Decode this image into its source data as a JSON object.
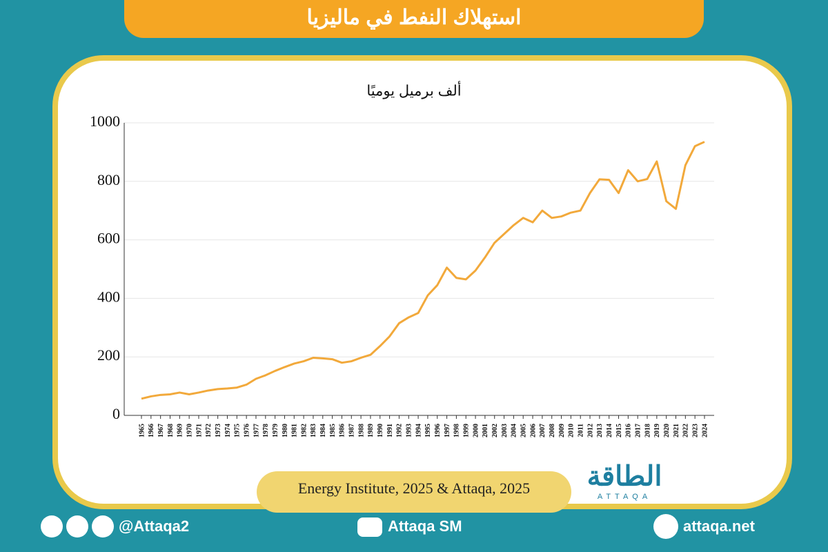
{
  "chart_data": {
    "type": "line",
    "title": "استهلاك النفط في ماليزيا",
    "subtitle": "ألف برميل يوميًا",
    "source": "Energy Institute, 2025 & Attaqa, 2025",
    "categories": [
      "1965",
      "1966",
      "1967",
      "1968",
      "1969",
      "1970",
      "1971",
      "1972",
      "1973",
      "1974",
      "1975",
      "1976",
      "1977",
      "1978",
      "1979",
      "1980",
      "1981",
      "1982",
      "1983",
      "1984",
      "1985",
      "1986",
      "1987",
      "1988",
      "1989",
      "1990",
      "1991",
      "1992",
      "1993",
      "1994",
      "1995",
      "1996",
      "1997",
      "1998",
      "1999",
      "2000",
      "2001",
      "2002",
      "2003",
      "2004",
      "2005",
      "2006",
      "2007",
      "2008",
      "2009",
      "2010",
      "2011",
      "2012",
      "2013",
      "2014",
      "2015",
      "2016",
      "2017",
      "2018",
      "2019",
      "2020",
      "2021",
      "2022",
      "2023",
      "2024"
    ],
    "series": [
      {
        "color": "#f2a93b",
        "values": [
          57,
          65,
          70,
          72,
          78,
          72,
          78,
          85,
          90,
          92,
          95,
          105,
          125,
          137,
          152,
          165,
          177,
          185,
          197,
          195,
          192,
          180,
          185,
          197,
          207,
          237,
          270,
          315,
          335,
          350,
          410,
          445,
          505,
          470,
          465,
          495,
          540,
          590,
          620,
          650,
          675,
          660,
          700,
          675,
          680,
          693,
          700,
          760,
          807,
          805,
          760,
          838,
          800,
          808,
          868,
          732,
          706,
          855,
          920,
          935
        ]
      }
    ],
    "ylim": [
      0,
      1000
    ],
    "yticks": [
      0,
      200,
      400,
      600,
      800,
      1000
    ],
    "grid": true
  },
  "branding": {
    "logo": "الطاقة",
    "logo_latin": "ATTAQA",
    "handle": "@Attaqa2",
    "youtube": "Attaqa SM",
    "website": "attaqa.net"
  }
}
